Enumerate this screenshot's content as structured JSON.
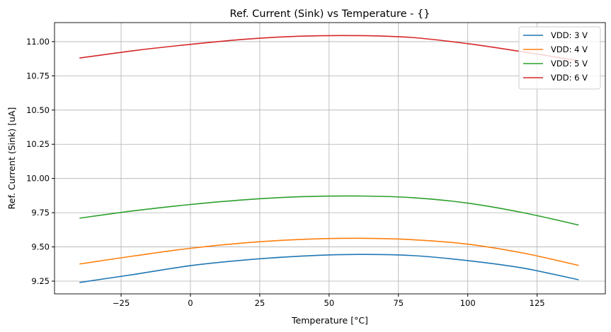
{
  "chart_data": {
    "type": "line",
    "title": "Ref. Current (Sink) vs Temperature - {}",
    "xlabel": "Temperature [°C]",
    "ylabel": "Ref. Current (Sink) [uA]",
    "xlim": [
      -49,
      149.6
    ],
    "ylim": [
      9.157,
      11.139
    ],
    "grid": true,
    "legend_position": "top-right",
    "x_ticks": [
      -25,
      0,
      25,
      50,
      75,
      100,
      125
    ],
    "x_tick_labels": [
      "−25",
      "0",
      "25",
      "50",
      "75",
      "100",
      "125"
    ],
    "y_ticks": [
      9.25,
      9.5,
      9.75,
      10.0,
      10.25,
      10.5,
      10.75,
      11.0
    ],
    "y_tick_labels": [
      "9.25",
      "9.50",
      "9.75",
      "10.00",
      "10.25",
      "10.50",
      "10.75",
      "11.00"
    ],
    "x": [
      -40,
      -20,
      0,
      20,
      40,
      60,
      80,
      100,
      120,
      140
    ],
    "series": [
      {
        "name": "VDD: 3 V",
        "color": "#1f77b4",
        "values": [
          9.24,
          9.3,
          9.363,
          9.405,
          9.433,
          9.445,
          9.437,
          9.4,
          9.345,
          9.26
        ]
      },
      {
        "name": "VDD: 4 V",
        "color": "#ff7f0e",
        "values": [
          9.375,
          9.435,
          9.49,
          9.53,
          9.555,
          9.563,
          9.553,
          9.52,
          9.455,
          9.365
        ]
      },
      {
        "name": "VDD: 5 V",
        "color": "#2ca02c",
        "values": [
          9.71,
          9.765,
          9.81,
          9.845,
          9.867,
          9.872,
          9.86,
          9.82,
          9.75,
          9.66
        ]
      },
      {
        "name": "VDD: 6 V",
        "color": "#d62728",
        "values": [
          10.88,
          10.935,
          10.98,
          11.018,
          11.04,
          11.044,
          11.03,
          10.985,
          10.925,
          10.86
        ]
      }
    ]
  }
}
